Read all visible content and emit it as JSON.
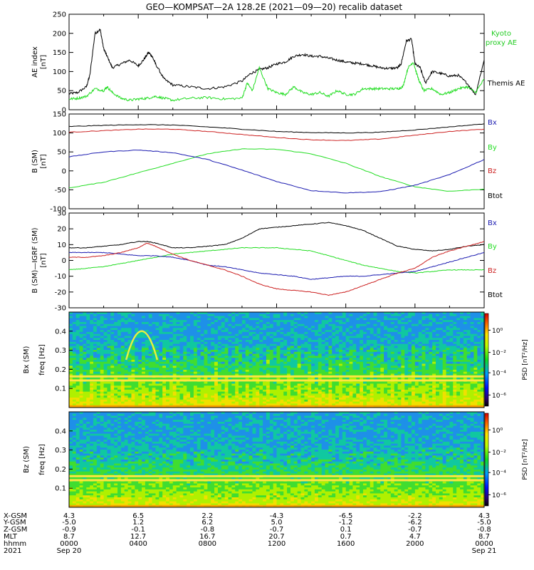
{
  "title": "GEO—KOMPSAT—2A 128.2E (2021—09—20) recalib dataset",
  "colors": {
    "black": "#000000",
    "green": "#22dd22",
    "red": "#cc2020",
    "blue": "#1a1ab0",
    "kyoto": "#22cc22"
  },
  "chart_data": [
    {
      "type": "line",
      "ylabel": "AE index",
      "yunit": "[nT]",
      "ylim": [
        0,
        250
      ],
      "yticks": [
        0,
        50,
        100,
        150,
        200,
        250
      ],
      "xlim": [
        0,
        24
      ],
      "legend": [
        {
          "name": "Kyoto",
          "color": "#22cc22"
        },
        {
          "name": "proxy AE",
          "color": "#22cc22"
        },
        {
          "name": "Themis AE",
          "color": "#000000"
        }
      ],
      "series": [
        {
          "name": "Themis AE",
          "color": "#000000",
          "x": [
            0,
            0.5,
            1,
            1.2,
            1.5,
            1.8,
            2,
            2.2,
            2.5,
            3,
            3.5,
            4,
            4.3,
            4.6,
            4.8,
            5,
            5.5,
            6,
            7,
            8,
            9,
            10,
            10.5,
            11,
            11.5,
            12,
            12.5,
            13,
            13.5,
            14,
            14.5,
            15,
            15.5,
            16,
            16.5,
            17,
            17.5,
            18,
            18.5,
            19,
            19.2,
            19.5,
            19.8,
            20,
            20.3,
            20.6,
            21,
            21.5,
            22,
            22.5,
            23,
            23.5,
            24
          ],
          "y": [
            42,
            45,
            60,
            90,
            200,
            210,
            160,
            140,
            110,
            120,
            130,
            115,
            130,
            150,
            140,
            120,
            80,
            65,
            60,
            55,
            60,
            75,
            95,
            105,
            110,
            120,
            125,
            140,
            145,
            140,
            140,
            135,
            130,
            125,
            122,
            120,
            115,
            110,
            108,
            110,
            120,
            180,
            185,
            120,
            110,
            70,
            100,
            95,
            88,
            90,
            70,
            40,
            130
          ]
        },
        {
          "name": "Kyoto proxy AE",
          "color": "#22dd22",
          "x": [
            0,
            0.5,
            1,
            1.5,
            2,
            2.2,
            2.5,
            3,
            3.5,
            4,
            4.5,
            5,
            5.5,
            6,
            7,
            8,
            9,
            10,
            10.3,
            10.6,
            11,
            11.5,
            12,
            12.5,
            13,
            13.5,
            14,
            14.5,
            15,
            15.5,
            16,
            16.5,
            17,
            17.5,
            18,
            18.5,
            19,
            19.3,
            19.6,
            19.9,
            20.2,
            20.5,
            21,
            21.5,
            22,
            22.5,
            23,
            23.5,
            24
          ],
          "y": [
            28,
            30,
            35,
            55,
            50,
            60,
            45,
            30,
            25,
            28,
            30,
            35,
            30,
            25,
            30,
            32,
            28,
            30,
            70,
            50,
            110,
            55,
            45,
            40,
            60,
            45,
            40,
            45,
            35,
            50,
            40,
            40,
            55,
            55,
            55,
            55,
            55,
            60,
            110,
            125,
            80,
            50,
            55,
            40,
            45,
            55,
            60,
            45,
            80
          ]
        }
      ]
    },
    {
      "type": "line",
      "ylabel": "B (SM)",
      "yunit": "[nT]",
      "ylim": [
        -100,
        150
      ],
      "yticks": [
        -100,
        -50,
        0,
        50,
        100,
        150
      ],
      "xlim": [
        0,
        24
      ],
      "legend": [
        {
          "name": "Bx",
          "color": "#1a1ab0"
        },
        {
          "name": "By",
          "color": "#22dd22"
        },
        {
          "name": "Bz",
          "color": "#cc2020"
        },
        {
          "name": "Btot",
          "color": "#000000"
        }
      ],
      "series": [
        {
          "name": "Btot",
          "color": "#000000",
          "x": [
            0,
            2,
            4,
            6,
            8,
            10,
            12,
            14,
            16,
            18,
            20,
            22,
            24
          ],
          "y": [
            117,
            120,
            122,
            121,
            116,
            110,
            104,
            101,
            100,
            102,
            108,
            116,
            124
          ]
        },
        {
          "name": "Bz",
          "color": "#cc2020",
          "x": [
            0,
            2,
            4,
            6,
            8,
            10,
            12,
            14,
            16,
            18,
            20,
            22,
            24
          ],
          "y": [
            102,
            106,
            110,
            110,
            104,
            96,
            88,
            82,
            80,
            84,
            94,
            104,
            110
          ]
        },
        {
          "name": "By",
          "color": "#22dd22",
          "x": [
            0,
            2,
            4,
            6,
            8,
            10,
            12,
            14,
            16,
            18,
            20,
            22,
            24
          ],
          "y": [
            -45,
            -30,
            -5,
            20,
            45,
            58,
            57,
            45,
            20,
            -15,
            -42,
            -54,
            -48
          ]
        },
        {
          "name": "Bx",
          "color": "#1a1ab0",
          "x": [
            0,
            2,
            4,
            6,
            8,
            10,
            12,
            14,
            16,
            18,
            20,
            22,
            24
          ],
          "y": [
            37,
            50,
            55,
            48,
            30,
            2,
            -28,
            -52,
            -58,
            -55,
            -38,
            -10,
            30
          ]
        }
      ]
    },
    {
      "type": "line",
      "ylabel": "B (SM)—IGRF (SM)",
      "yunit": "[nT]",
      "ylim": [
        -30,
        30
      ],
      "yticks": [
        -30,
        -20,
        -10,
        0,
        10,
        20,
        30
      ],
      "xlim": [
        0,
        24
      ],
      "legend": [
        {
          "name": "Bx",
          "color": "#1a1ab0"
        },
        {
          "name": "By",
          "color": "#22dd22"
        },
        {
          "name": "Bz",
          "color": "#cc2020"
        },
        {
          "name": "Btot",
          "color": "#000000"
        }
      ],
      "series": [
        {
          "name": "Btot",
          "color": "#000000",
          "x": [
            0,
            1,
            2,
            3,
            4,
            4.5,
            5,
            6,
            7,
            8,
            9,
            10,
            11,
            12,
            13,
            14,
            15,
            16,
            17,
            18,
            19,
            20,
            21,
            22,
            23,
            24
          ],
          "y": [
            8,
            8,
            9,
            10,
            12,
            12,
            11,
            8,
            8,
            9,
            10,
            14,
            20,
            21,
            22,
            23,
            24,
            22,
            19,
            14,
            9,
            7,
            6,
            7,
            9,
            10
          ]
        },
        {
          "name": "By",
          "color": "#22dd22",
          "x": [
            0,
            1,
            2,
            3,
            4,
            5,
            6,
            7,
            8,
            9,
            10,
            11,
            12,
            13,
            14,
            15,
            16,
            17,
            18,
            19,
            20,
            21,
            22,
            23,
            24
          ],
          "y": [
            -6,
            -5,
            -4,
            -2,
            0,
            2,
            4,
            5,
            6,
            7,
            8,
            8,
            8,
            7,
            6,
            3,
            0,
            -3,
            -5,
            -7,
            -8,
            -7,
            -6,
            -6,
            -6
          ]
        },
        {
          "name": "Bx",
          "color": "#1a1ab0",
          "x": [
            0,
            1,
            2,
            3,
            4,
            5,
            6,
            7,
            8,
            9,
            10,
            11,
            12,
            13,
            14,
            15,
            16,
            17,
            18,
            19,
            20,
            21,
            22,
            23,
            24
          ],
          "y": [
            5,
            5,
            5,
            4,
            3,
            3,
            2,
            0,
            -3,
            -4,
            -6,
            -8,
            -9,
            -10,
            -12,
            -11,
            -10,
            -10,
            -9,
            -8,
            -7,
            -4,
            -1,
            2,
            5
          ]
        },
        {
          "name": "Bz",
          "color": "#cc2020",
          "x": [
            0,
            1,
            2,
            3,
            4,
            4.5,
            5,
            6,
            7,
            8,
            9,
            10,
            11,
            12,
            13,
            14,
            15,
            16,
            17,
            18,
            19,
            20,
            21,
            22,
            23,
            24
          ],
          "y": [
            2,
            2,
            3,
            5,
            8,
            11,
            9,
            4,
            0,
            -3,
            -6,
            -10,
            -15,
            -18,
            -19,
            -20,
            -22,
            -20,
            -16,
            -12,
            -8,
            -5,
            2,
            6,
            9,
            12
          ]
        }
      ]
    },
    {
      "type": "heatmap",
      "ylabel": "Bx (SM)",
      "ysublabel": "freq",
      "yunit": "[Hz]",
      "ylim": [
        0,
        0.5
      ],
      "yticks": [
        0.1,
        0.2,
        0.3,
        0.4
      ],
      "ytick_labels": [
        "0.1",
        "0.2",
        "0.3",
        "0.4"
      ],
      "xlim": [
        0,
        24
      ],
      "colorbar": {
        "label": "PSD [nT²/Hz]",
        "ticks": [
          "10⁰",
          "10⁻²",
          "10⁻⁴",
          "10⁻⁶"
        ]
      }
    },
    {
      "type": "heatmap",
      "ylabel": "Bz (SM)",
      "ysublabel": "freq",
      "yunit": "[Hz]",
      "ylim": [
        0,
        0.5
      ],
      "yticks": [
        0.1,
        0.2,
        0.3,
        0.4
      ],
      "ytick_labels": [
        "0.1",
        "0.2",
        "0.3",
        "0.4"
      ],
      "xlim": [
        0,
        24
      ],
      "colorbar": {
        "label": "PSD [nT²/Hz]",
        "ticks": [
          "10⁰",
          "10⁻²",
          "10⁻⁴",
          "10⁻⁶"
        ]
      }
    }
  ],
  "x_axis": {
    "row_labels": [
      "X-GSM",
      "Y-GSM",
      "Z-GSM",
      "MLT",
      "hhmm",
      "2021"
    ],
    "ticks": [
      {
        "hour": 0,
        "vals": [
          "4.3",
          "-5.0",
          "-0.9",
          "8.7",
          "0000",
          "Sep 20"
        ]
      },
      {
        "hour": 4,
        "vals": [
          "6.5",
          "1.2",
          "-0.1",
          "12.7",
          "0400",
          ""
        ]
      },
      {
        "hour": 8,
        "vals": [
          "2.2",
          "6.2",
          "-0.8",
          "16.7",
          "0800",
          ""
        ]
      },
      {
        "hour": 12,
        "vals": [
          "-4.3",
          "5.0",
          "-0.7",
          "20.7",
          "1200",
          ""
        ]
      },
      {
        "hour": 16,
        "vals": [
          "-6.5",
          "-1.2",
          "0.1",
          "0.7",
          "1600",
          ""
        ]
      },
      {
        "hour": 20,
        "vals": [
          "-2.2",
          "-6.2",
          "-0.7",
          "4.7",
          "2000",
          ""
        ]
      },
      {
        "hour": 24,
        "vals": [
          "4.3",
          "-5.0",
          "-0.8",
          "8.7",
          "0000",
          "Sep 21"
        ]
      }
    ]
  }
}
